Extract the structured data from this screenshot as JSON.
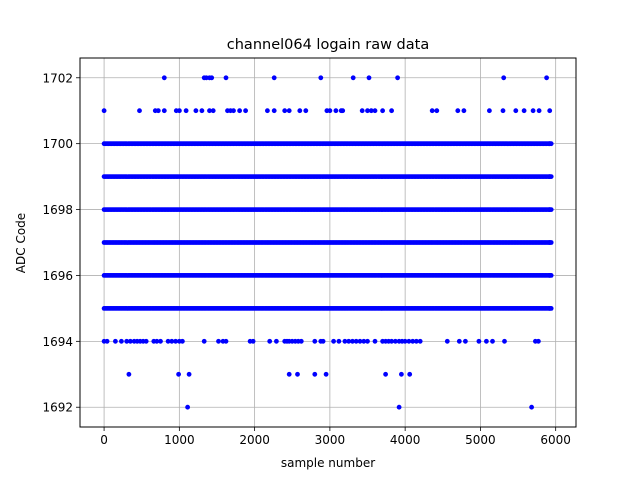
{
  "chart_data": {
    "type": "scatter",
    "title": "channel064 logain raw data",
    "xlabel": "sample number",
    "ylabel": "ADC Code",
    "xlim": [
      -320,
      6270
    ],
    "ylim": [
      1691.4,
      1702.6
    ],
    "xticks": [
      0,
      1000,
      2000,
      3000,
      4000,
      5000,
      6000
    ],
    "yticks": [
      1692,
      1694,
      1696,
      1698,
      1700,
      1702
    ],
    "grid": true,
    "marker_color": "#0000ff",
    "n_samples": 6000,
    "series": [
      {
        "values_by_code": [
          {
            "y": 1692,
            "x": [
              1110,
              3920,
              5680
            ]
          },
          {
            "y": 1693,
            "x": [
              330,
              990,
              1130,
              2460,
              2570,
              2800,
              2950,
              3740,
              3950,
              4060
            ]
          },
          {
            "y": 1694,
            "x": [
              0,
              40,
              150,
              230,
              300,
              350,
              400,
              440,
              480,
              520,
              560,
              660,
              700,
              750,
              850,
              900,
              950,
              1000,
              1040,
              1330,
              1520,
              1580,
              1620,
              1940,
              1980,
              2200,
              2290,
              2400,
              2430,
              2460,
              2500,
              2540,
              2580,
              2620,
              2800,
              2880,
              2910,
              3050,
              3120,
              3200,
              3250,
              3300,
              3350,
              3400,
              3450,
              3500,
              3600,
              3700,
              3740,
              3780,
              3820,
              3870,
              3920,
              3960,
              4000,
              4050,
              4100,
              4150,
              4200,
              4560,
              4720,
              4800,
              4980,
              5080,
              5160,
              5320,
              5730,
              5770
            ]
          },
          {
            "y": 1701,
            "x": [
              0,
              470,
              680,
              720,
              800,
              960,
              1000,
              1090,
              1220,
              1300,
              1400,
              1450,
              1640,
              1680,
              1720,
              1800,
              1880,
              2170,
              2260,
              2400,
              2460,
              2600,
              2680,
              2960,
              3000,
              3080,
              3150,
              3170,
              3430,
              3500,
              3550,
              3600,
              3700,
              3820,
              4360,
              4420,
              4700,
              4780,
              5120,
              5300,
              5470,
              5580,
              5700,
              5780,
              5920
            ]
          },
          {
            "y": 1702,
            "x": [
              800,
              1330,
              1360,
              1400,
              1430,
              1620,
              2260,
              2880,
              3310,
              3520,
              3900,
              5310,
              5880
            ]
          }
        ],
        "dense_codes": [
          1695,
          1696,
          1697,
          1698,
          1699,
          1700
        ]
      }
    ]
  }
}
